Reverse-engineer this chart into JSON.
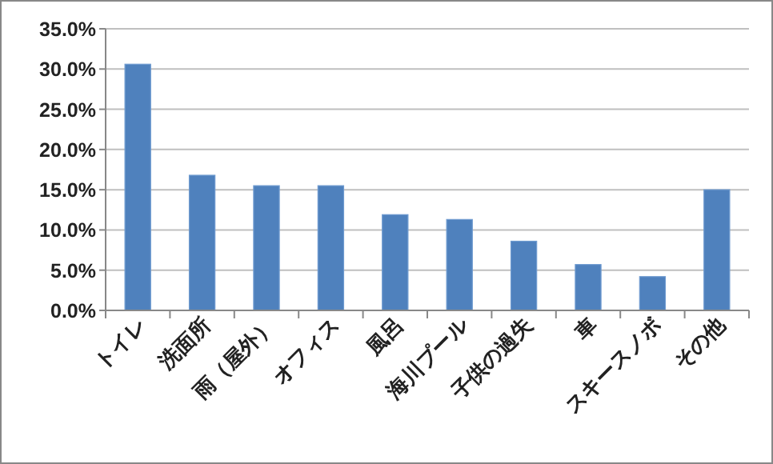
{
  "chart_data": {
    "type": "bar",
    "categories": [
      "トイレ",
      "洗面所",
      "雨（屋外）",
      "オフィス",
      "風呂",
      "海川プール",
      "子供の過失",
      "車",
      "スキースノボ",
      "その他"
    ],
    "values": [
      30.6,
      16.8,
      15.5,
      15.5,
      11.9,
      11.3,
      8.6,
      5.7,
      4.2,
      15.0
    ],
    "color": "#4f81bd",
    "ylim": [
      0,
      35
    ],
    "yticks": [
      {
        "value": 0,
        "label": "0.0%"
      },
      {
        "value": 5,
        "label": "5.0%"
      },
      {
        "value": 10,
        "label": "10.0%"
      },
      {
        "value": 15,
        "label": "15.0%"
      },
      {
        "value": 20,
        "label": "20.0%"
      },
      {
        "value": 25,
        "label": "25.0%"
      },
      {
        "value": 30,
        "label": "30.0%"
      },
      {
        "value": 35,
        "label": "35.0%"
      }
    ],
    "grid": "y"
  }
}
